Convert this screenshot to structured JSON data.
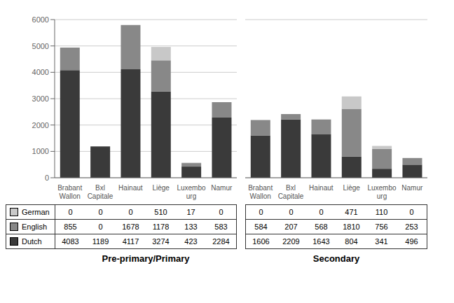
{
  "chart_data": [
    {
      "type": "bar",
      "stacked": true,
      "xlabel": "Pre-primary/Primary",
      "categories": [
        "Brabant\nWallon",
        "Bxl\nCapitale",
        "Hainaut",
        "Liège",
        "Luxembo\nurg",
        "Namur"
      ],
      "series": [
        {
          "name": "Dutch",
          "color": "#3a3a3a",
          "values": [
            4083,
            1189,
            4117,
            3274,
            423,
            2284
          ]
        },
        {
          "name": "English",
          "color": "#888888",
          "values": [
            855,
            0,
            1678,
            1178,
            133,
            583
          ]
        },
        {
          "name": "German",
          "color": "#c8c8c8",
          "values": [
            0,
            0,
            0,
            510,
            17,
            0
          ]
        }
      ],
      "ylim": [
        0,
        6000
      ],
      "yticks": [
        0,
        1000,
        2000,
        3000,
        4000,
        5000,
        6000
      ],
      "grid": true,
      "data_labels": true
    },
    {
      "type": "bar",
      "stacked": true,
      "xlabel": "Secondary",
      "tick_labels": "x",
      "categories": [
        "Brabant\nWallon",
        "Bxl\nCapitale",
        "Hainaut",
        "Liège",
        "Luxembo\nurg",
        "Namur"
      ],
      "series": [
        {
          "name": "Dutch",
          "color": "#3a3a3a",
          "values": [
            1606,
            2209,
            1643,
            804,
            341,
            496
          ]
        },
        {
          "name": "English",
          "color": "#888888",
          "values": [
            584,
            207,
            568,
            1810,
            756,
            253
          ]
        },
        {
          "name": "German",
          "color": "#c8c8c8",
          "values": [
            0,
            0,
            0,
            471,
            110,
            0
          ]
        }
      ],
      "ylim": [
        0,
        6000
      ],
      "yticks": [
        0,
        1000,
        2000,
        3000,
        4000,
        5000,
        6000
      ],
      "grid": true,
      "data_labels": true
    }
  ]
}
